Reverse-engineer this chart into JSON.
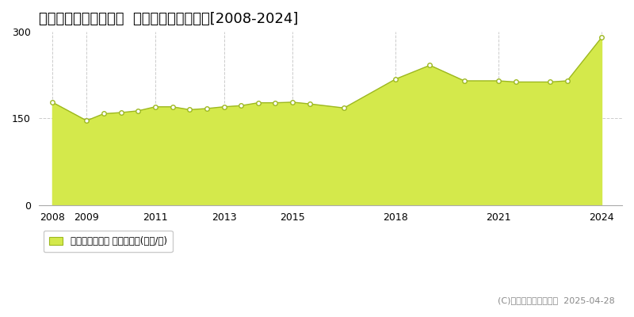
{
  "title": "川崎市中原区木月大町  マンション価格推移[2008-2024]",
  "title_fontsize": 13,
  "xlim": [
    2007.6,
    2024.6
  ],
  "ylim": [
    0,
    300
  ],
  "yticks": [
    0,
    150,
    300
  ],
  "xtick_positions": [
    2008,
    2009,
    2011,
    2013,
    2015,
    2018,
    2021,
    2024
  ],
  "xtick_labels": [
    "2008",
    "2009",
    "2011",
    "2013",
    "2015",
    "2018",
    "2021",
    "2024"
  ],
  "years": [
    2008.0,
    2009.0,
    2009.5,
    2010.0,
    2010.5,
    2011.0,
    2011.5,
    2012.0,
    2012.5,
    2013.0,
    2013.5,
    2014.0,
    2014.5,
    2015.0,
    2015.5,
    2016.5,
    2018.0,
    2019.0,
    2020.0,
    2021.0,
    2021.5,
    2022.5,
    2023.0,
    2024.0
  ],
  "values": [
    178,
    146,
    158,
    160,
    163,
    170,
    170,
    165,
    167,
    170,
    172,
    177,
    177,
    178,
    175,
    168,
    218,
    242,
    215,
    215,
    213,
    213,
    215,
    290
  ],
  "area_color": "#d4e94b",
  "line_color": "#9db820",
  "marker_facecolor": "#ffffff",
  "marker_edgecolor": "#9db820",
  "marker_size": 4,
  "marker_linewidth": 1.0,
  "line_width": 1.0,
  "vgrid_color": "#cccccc",
  "hgrid_color": "#cccccc",
  "vgrid_style": "--",
  "hgrid_style": "--",
  "background_color": "#ffffff",
  "legend_label": "マンション価格 平均坪単価(万円/坪)",
  "legend_color": "#d4e94b",
  "copyright_text": "(C)土地価格ドットコム  2025-04-28",
  "copyright_fontsize": 8,
  "copyright_color": "#888888"
}
